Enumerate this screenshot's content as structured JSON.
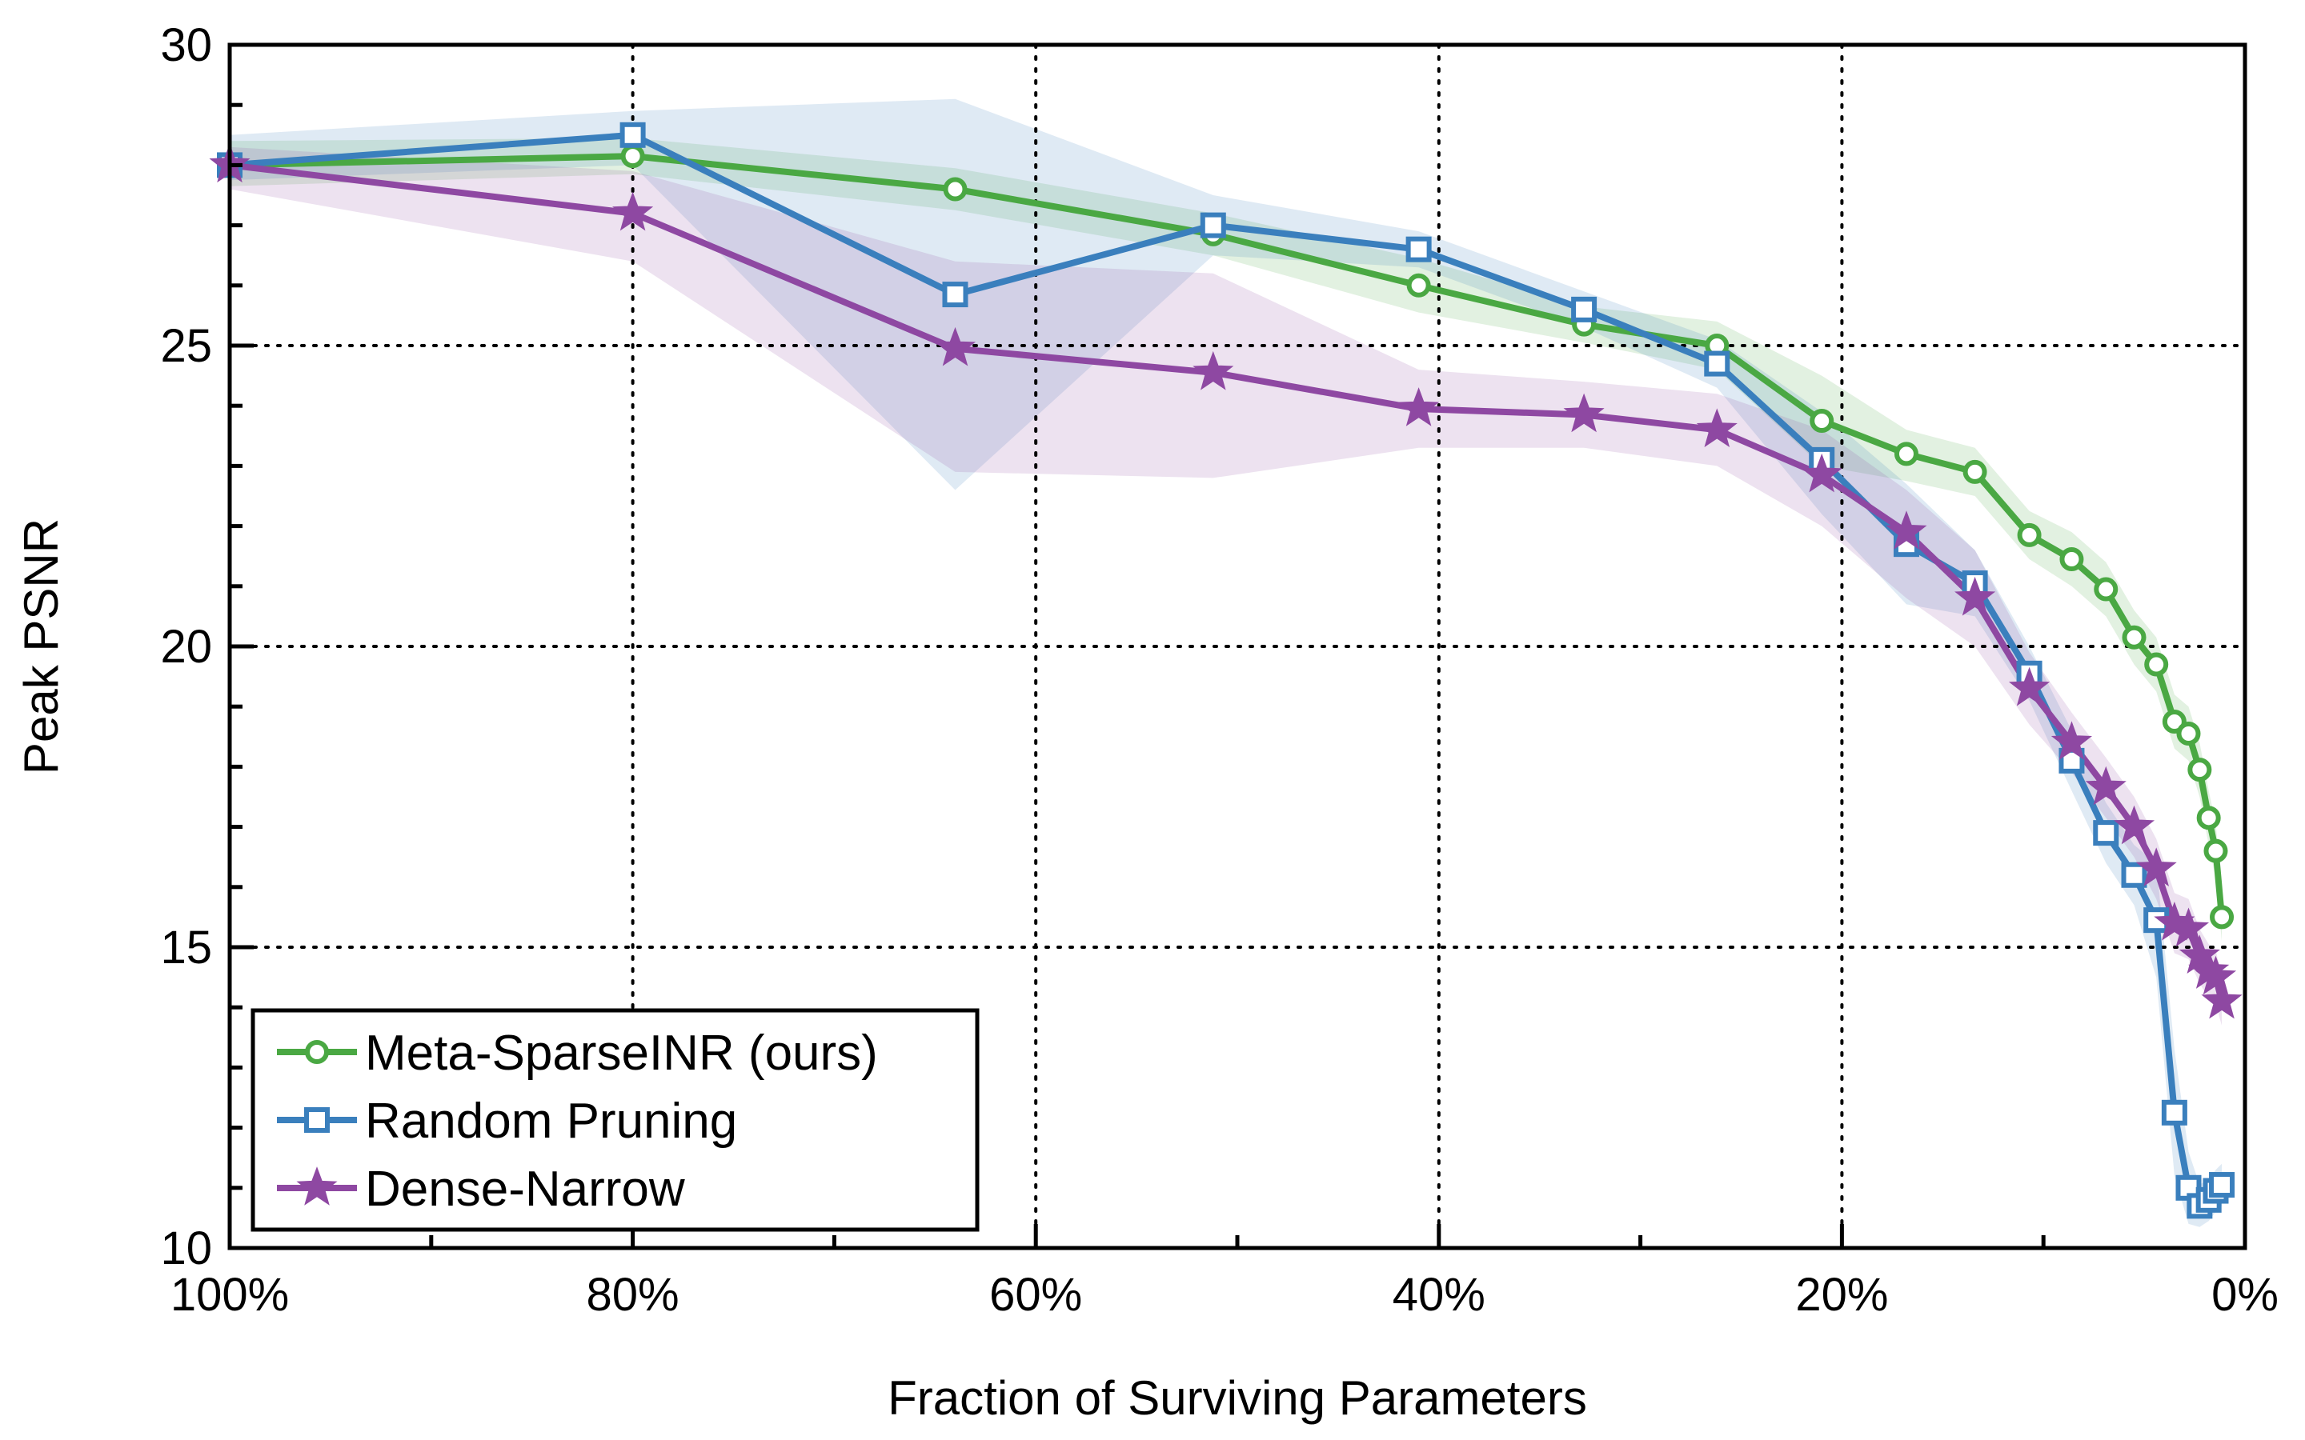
{
  "chart_data": {
    "type": "line",
    "title": "",
    "xlabel": "Fraction of Surviving Parameters",
    "ylabel": "Peak PSNR",
    "xlim": [
      100,
      0
    ],
    "ylim": [
      10,
      30
    ],
    "x_ticks": [
      100,
      80,
      60,
      40,
      20,
      0
    ],
    "x_tick_labels": [
      "100%",
      "80%",
      "60%",
      "40%",
      "20%",
      "0%"
    ],
    "y_ticks": [
      10,
      15,
      20,
      25,
      30
    ],
    "y_tick_labels": [
      "10",
      "15",
      "20",
      "25",
      "30"
    ],
    "grid": "dotted, at x = 80%, 60%, 40%, 20% and y = 15, 20, 25",
    "legend_position": "bottom-left",
    "series": [
      {
        "name": "Meta-SparseINR (ours)",
        "color": "#4aa843",
        "marker": "circle",
        "points": [
          [
            100,
            28.0
          ],
          [
            80,
            28.15
          ],
          [
            64,
            27.6
          ],
          [
            51.2,
            26.85
          ],
          [
            41,
            26.0
          ],
          [
            32.8,
            25.35
          ],
          [
            26.2,
            25.0
          ],
          [
            21,
            23.75
          ],
          [
            16.8,
            23.2
          ],
          [
            13.4,
            22.9
          ],
          [
            10.7,
            21.85
          ],
          [
            8.6,
            21.45
          ],
          [
            6.9,
            20.95
          ],
          [
            5.5,
            20.15
          ],
          [
            4.4,
            19.7
          ],
          [
            3.5,
            18.75
          ],
          [
            2.8,
            18.55
          ],
          [
            2.25,
            17.95
          ],
          [
            1.8,
            17.15
          ],
          [
            1.45,
            16.6
          ],
          [
            1.15,
            15.5
          ]
        ],
        "band": [
          [
            100,
            27.65,
            28.4
          ],
          [
            80,
            27.85,
            28.45
          ],
          [
            64,
            27.25,
            27.95
          ],
          [
            51.2,
            26.5,
            27.2
          ],
          [
            41,
            25.55,
            26.45
          ],
          [
            32.8,
            25.05,
            25.65
          ],
          [
            26.2,
            24.6,
            25.4
          ],
          [
            21,
            23.0,
            24.5
          ],
          [
            16.8,
            22.75,
            23.6
          ],
          [
            13.4,
            22.5,
            23.3
          ],
          [
            10.7,
            21.45,
            22.25
          ],
          [
            8.6,
            21.0,
            21.9
          ],
          [
            6.9,
            20.5,
            21.4
          ],
          [
            5.5,
            19.7,
            20.6
          ],
          [
            4.4,
            19.25,
            20.15
          ],
          [
            3.5,
            18.3,
            19.2
          ],
          [
            2.8,
            18.1,
            19.0
          ],
          [
            2.25,
            17.5,
            18.4
          ],
          [
            1.8,
            16.7,
            17.6
          ],
          [
            1.45,
            16.15,
            17.05
          ],
          [
            1.15,
            15.1,
            15.9
          ]
        ]
      },
      {
        "name": "Random Pruning",
        "color": "#3a7fbd",
        "marker": "square",
        "points": [
          [
            100,
            28.0
          ],
          [
            80,
            28.5
          ],
          [
            64,
            25.85
          ],
          [
            51.2,
            27.0
          ],
          [
            41,
            26.6
          ],
          [
            32.8,
            25.6
          ],
          [
            26.2,
            24.7
          ],
          [
            21,
            23.1
          ],
          [
            16.8,
            21.7
          ],
          [
            13.4,
            21.05
          ],
          [
            10.7,
            19.55
          ],
          [
            8.6,
            18.1
          ],
          [
            6.9,
            16.9
          ],
          [
            5.5,
            16.2
          ],
          [
            4.4,
            15.45
          ],
          [
            3.5,
            12.25
          ],
          [
            2.8,
            11.0
          ],
          [
            2.25,
            10.7
          ],
          [
            1.8,
            10.8
          ],
          [
            1.45,
            10.95
          ],
          [
            1.15,
            11.05
          ]
        ],
        "band": [
          [
            100,
            27.75,
            28.5
          ],
          [
            80,
            28.0,
            28.9
          ],
          [
            64,
            22.6,
            29.1
          ],
          [
            51.2,
            26.5,
            27.5
          ],
          [
            41,
            26.3,
            26.9
          ],
          [
            32.8,
            25.3,
            25.9
          ],
          [
            26.2,
            24.3,
            25.1
          ],
          [
            21,
            22.2,
            23.9
          ],
          [
            16.8,
            20.7,
            22.7
          ],
          [
            13.4,
            20.5,
            21.6
          ],
          [
            10.7,
            19.1,
            20.0
          ],
          [
            8.6,
            17.6,
            18.6
          ],
          [
            6.9,
            16.4,
            17.4
          ],
          [
            5.5,
            15.7,
            16.7
          ],
          [
            4.4,
            14.5,
            16.4
          ],
          [
            3.5,
            11.2,
            13.3
          ],
          [
            2.8,
            10.4,
            11.6
          ],
          [
            2.25,
            10.35,
            11.05
          ],
          [
            1.8,
            10.45,
            11.15
          ],
          [
            1.45,
            10.6,
            11.3
          ],
          [
            1.15,
            10.7,
            11.4
          ]
        ]
      },
      {
        "name": "Dense-Narrow",
        "color": "#8e48a2",
        "marker": "star",
        "points": [
          [
            100,
            28.0
          ],
          [
            80,
            27.2
          ],
          [
            64,
            24.95
          ],
          [
            51.2,
            24.55
          ],
          [
            41,
            23.95
          ],
          [
            32.8,
            23.85
          ],
          [
            26.2,
            23.6
          ],
          [
            21,
            22.85
          ],
          [
            16.8,
            21.9
          ],
          [
            13.4,
            20.8
          ],
          [
            10.7,
            19.3
          ],
          [
            8.6,
            18.4
          ],
          [
            6.9,
            17.65
          ],
          [
            5.5,
            17.0
          ],
          [
            4.4,
            16.3
          ],
          [
            3.5,
            15.4
          ],
          [
            2.8,
            15.3
          ],
          [
            2.25,
            14.85
          ],
          [
            1.8,
            14.6
          ],
          [
            1.45,
            14.5
          ],
          [
            1.15,
            14.1
          ]
        ],
        "band": [
          [
            100,
            27.6,
            28.3
          ],
          [
            80,
            26.4,
            27.9
          ],
          [
            64,
            22.9,
            26.4
          ],
          [
            51.2,
            22.8,
            26.2
          ],
          [
            41,
            23.3,
            24.6
          ],
          [
            32.8,
            23.3,
            24.4
          ],
          [
            26.2,
            23.0,
            24.2
          ],
          [
            21,
            22.0,
            23.6
          ],
          [
            16.8,
            20.8,
            22.6
          ],
          [
            13.4,
            20.0,
            21.6
          ],
          [
            10.7,
            18.7,
            19.9
          ],
          [
            8.6,
            17.9,
            18.9
          ],
          [
            6.9,
            17.15,
            18.15
          ],
          [
            5.5,
            16.5,
            17.5
          ],
          [
            4.4,
            15.8,
            16.8
          ],
          [
            3.5,
            14.9,
            15.9
          ],
          [
            2.8,
            14.8,
            15.8
          ],
          [
            2.25,
            14.4,
            15.3
          ],
          [
            1.8,
            14.15,
            15.05
          ],
          [
            1.45,
            14.05,
            14.95
          ],
          [
            1.15,
            13.7,
            14.5
          ]
        ]
      }
    ]
  }
}
